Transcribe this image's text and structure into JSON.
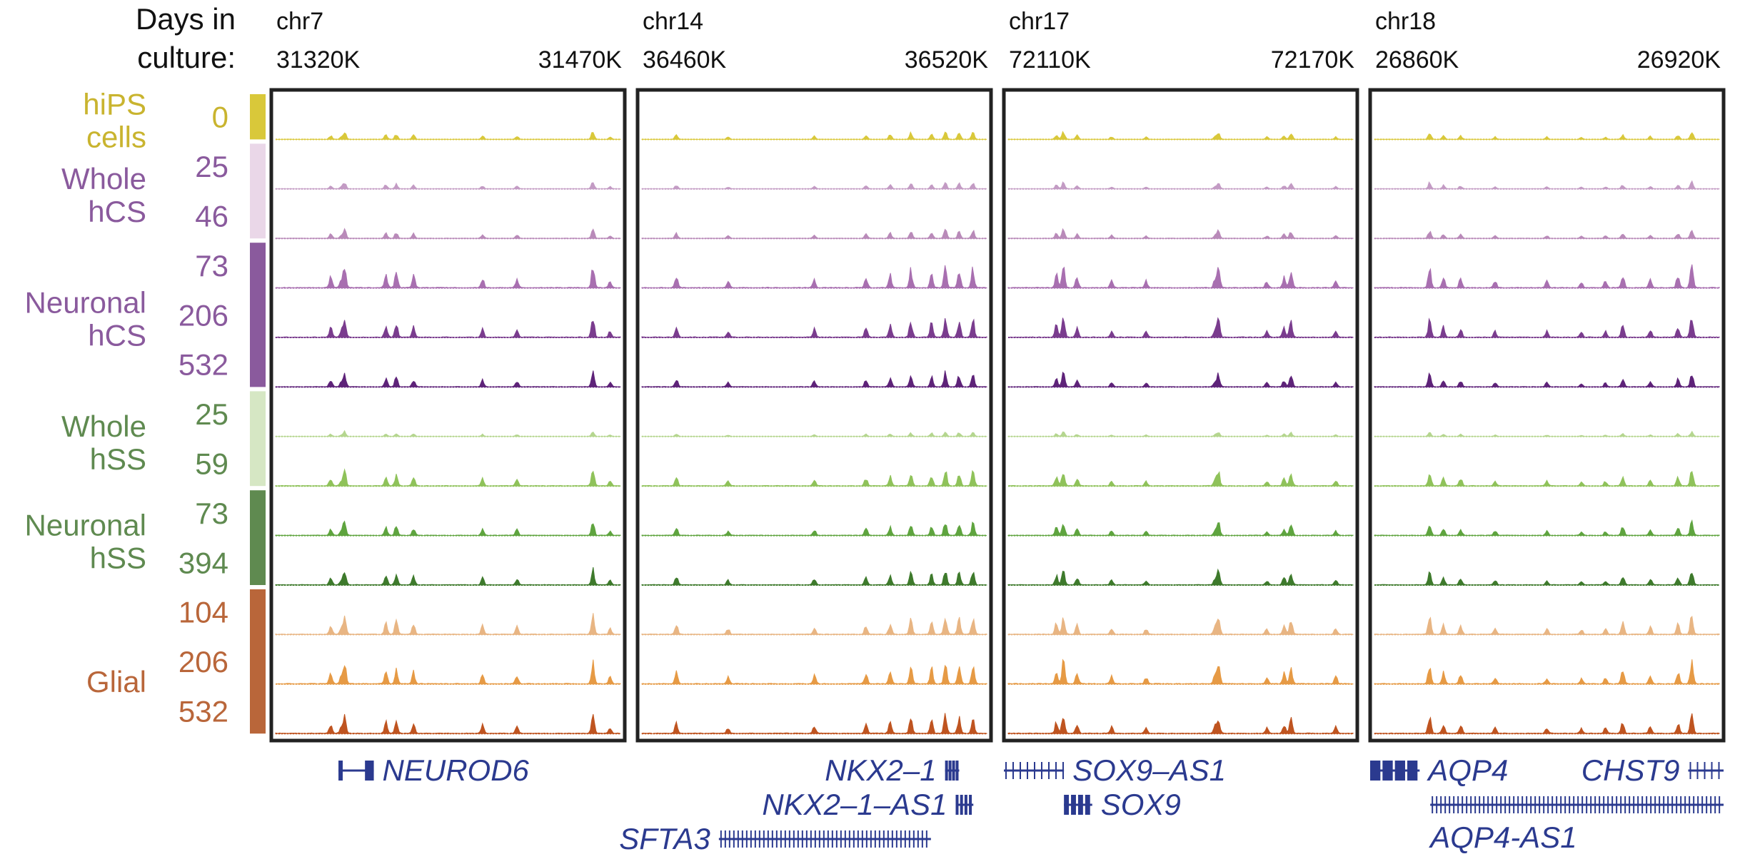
{
  "header": {
    "days_label_line1": "Days in",
    "days_label_line2": "culture:"
  },
  "chart_data": {
    "type": "area",
    "title": "",
    "colors": {
      "hiPS": "#d9c83a",
      "whole_hcs_bar": "#ead7e8",
      "whole_hcs_25": "#c39bc4",
      "whole_hcs_46": "#b98ab9",
      "neuronal_hcs_bar": "#8a5a9d",
      "neuronal_hcs_73": "#a86fb0",
      "neuronal_hcs_206": "#7a3c8e",
      "neuronal_hcs_532": "#5e2379",
      "whole_hss_bar": "#d6e7c4",
      "whole_hss_25": "#b5d68f",
      "whole_hss_59": "#8fc25a",
      "neuronal_hss_bar": "#5f8a50",
      "neuronal_hss_73": "#5fa43f",
      "neuronal_hss_394": "#3e7a2c",
      "glial_bar": "#b9663a",
      "glial_104": "#e8b583",
      "glial_206": "#e69a45",
      "glial_532": "#bf5420",
      "gene": "#2b3a8f",
      "frame": "#222222",
      "sample_label_text_hips": "#c9b42f",
      "sample_label_text_hcs": "#8a5a9d",
      "sample_label_text_hss": "#5f8a50",
      "sample_label_text_glial": "#b9663a"
    },
    "groups": [
      {
        "name_line1": "hiPS",
        "name_line2": "cells",
        "color": "#c9b42f",
        "bar": "#d9c83a",
        "tracks": [
          0
        ]
      },
      {
        "name_line1": "Whole",
        "name_line2": "hCS",
        "color": "#8a5a9d",
        "bar": "#ead7e8",
        "tracks": [
          1,
          2
        ]
      },
      {
        "name_line1": "Neuronal",
        "name_line2": "hCS",
        "color": "#8a5a9d",
        "bar": "#8a5a9d",
        "tracks": [
          3,
          4,
          5
        ]
      },
      {
        "name_line1": "Whole",
        "name_line2": "hSS",
        "color": "#5f8a50",
        "bar": "#d6e7c4",
        "tracks": [
          6,
          7
        ]
      },
      {
        "name_line1": "Neuronal",
        "name_line2": "hSS",
        "color": "#5f8a50",
        "bar": "#5f8a50",
        "tracks": [
          8,
          9
        ]
      },
      {
        "name_line1": "",
        "name_line2": "Glial",
        "color": "#b9663a",
        "bar": "#b9663a",
        "tracks": [
          10,
          11,
          12
        ]
      }
    ],
    "tracks": [
      {
        "day": "0",
        "color": "#d9c83a",
        "label_color": "#c9b42f",
        "gain": 0.25
      },
      {
        "day": "25",
        "color": "#c39bc4",
        "label_color": "#8a5a9d",
        "gain": 0.22
      },
      {
        "day": "46",
        "color": "#b98ab9",
        "label_color": "#8a5a9d",
        "gain": 0.28
      },
      {
        "day": "73",
        "color": "#a86fb0",
        "label_color": "#8a5a9d",
        "gain": 0.7
      },
      {
        "day": "206",
        "color": "#7a3c8e",
        "label_color": "#8a5a9d",
        "gain": 0.65
      },
      {
        "day": "532",
        "color": "#5e2379",
        "label_color": "#8a5a9d",
        "gain": 0.45
      },
      {
        "day": "25",
        "color": "#b5d68f",
        "label_color": "#5f8a50",
        "gain": 0.15
      },
      {
        "day": "59",
        "color": "#8fc25a",
        "label_color": "#5f8a50",
        "gain": 0.5
      },
      {
        "day": "73",
        "color": "#5fa43f",
        "label_color": "#5f8a50",
        "gain": 0.45
      },
      {
        "day": "394",
        "color": "#3e7a2c",
        "label_color": "#5f8a50",
        "gain": 0.5
      },
      {
        "day": "104",
        "color": "#e8b583",
        "label_color": "#b9663a",
        "gain": 0.6
      },
      {
        "day": "206",
        "color": "#e69a45",
        "label_color": "#b9663a",
        "gain": 0.7
      },
      {
        "day": "532",
        "color": "#bf5420",
        "label_color": "#b9663a",
        "gain": 0.6
      }
    ],
    "regions": [
      {
        "chrom": "chr7",
        "start_label": "31320K",
        "end_label": "31470K",
        "peaks": [
          [
            0.16,
            0.5
          ],
          [
            0.19,
            0.3
          ],
          [
            0.2,
            1.0
          ],
          [
            0.32,
            0.6
          ],
          [
            0.35,
            0.7
          ],
          [
            0.4,
            0.55
          ],
          [
            0.6,
            0.45
          ],
          [
            0.7,
            0.4
          ],
          [
            0.92,
            1.0
          ],
          [
            0.97,
            0.3
          ]
        ],
        "genes": [
          {
            "name": "NEUROD6",
            "row": 0,
            "start": 0.19,
            "end": 0.29,
            "label_side": "right",
            "style": "exons"
          }
        ]
      },
      {
        "chrom": "chr14",
        "start_label": "36460K",
        "end_label": "36520K",
        "peaks": [
          [
            0.1,
            0.55
          ],
          [
            0.25,
            0.3
          ],
          [
            0.5,
            0.4
          ],
          [
            0.65,
            0.5
          ],
          [
            0.72,
            0.6
          ],
          [
            0.78,
            0.8
          ],
          [
            0.84,
            0.7
          ],
          [
            0.88,
            1.0
          ],
          [
            0.92,
            0.85
          ],
          [
            0.96,
            0.9
          ]
        ],
        "genes": [
          {
            "name": "NKX2–1",
            "row": 0,
            "start": 0.87,
            "end": 0.91,
            "label_side": "left",
            "style": "block"
          },
          {
            "name": "NKX2–1–AS1",
            "row": 1,
            "start": 0.9,
            "end": 0.95,
            "label_side": "left",
            "style": "block"
          },
          {
            "name": "SFTA3",
            "row": 2,
            "start": 0.23,
            "end": 0.83,
            "label_side": "left",
            "style": "dense"
          }
        ]
      },
      {
        "chrom": "chr17",
        "start_label": "72110K",
        "end_label": "72170K",
        "peaks": [
          [
            0.14,
            0.6
          ],
          [
            0.16,
            1.0
          ],
          [
            0.2,
            0.5
          ],
          [
            0.3,
            0.35
          ],
          [
            0.4,
            0.3
          ],
          [
            0.6,
            0.4
          ],
          [
            0.61,
            0.9
          ],
          [
            0.75,
            0.3
          ],
          [
            0.8,
            0.5
          ],
          [
            0.82,
            0.85
          ],
          [
            0.95,
            0.35
          ]
        ],
        "genes": [
          {
            "name": "SOX9–AS1",
            "row": 0,
            "start": 0.0,
            "end": 0.17,
            "label_side": "right",
            "style": "sparse"
          },
          {
            "name": "SOX9",
            "row": 1,
            "start": 0.17,
            "end": 0.25,
            "label_side": "right",
            "style": "block"
          }
        ]
      },
      {
        "chrom": "chr18",
        "start_label": "26860K",
        "end_label": "26920K",
        "peaks": [
          [
            0.16,
            0.9
          ],
          [
            0.2,
            0.5
          ],
          [
            0.25,
            0.45
          ],
          [
            0.35,
            0.3
          ],
          [
            0.5,
            0.3
          ],
          [
            0.6,
            0.25
          ],
          [
            0.67,
            0.3
          ],
          [
            0.72,
            0.6
          ],
          [
            0.8,
            0.4
          ],
          [
            0.88,
            0.55
          ],
          [
            0.92,
            1.0
          ]
        ],
        "genes": [
          {
            "name": "AQP4",
            "row": 0,
            "start": 0.0,
            "end": 0.14,
            "label_side": "right",
            "style": "block"
          },
          {
            "name": "CHST9",
            "row": 0,
            "start": 0.9,
            "end": 1.0,
            "label_side": "left",
            "style": "sparse"
          },
          {
            "name": "AQP4-AS1",
            "row": 1,
            "start": 0.17,
            "end": 1.0,
            "label_side": "below",
            "style": "dense"
          }
        ]
      }
    ]
  }
}
